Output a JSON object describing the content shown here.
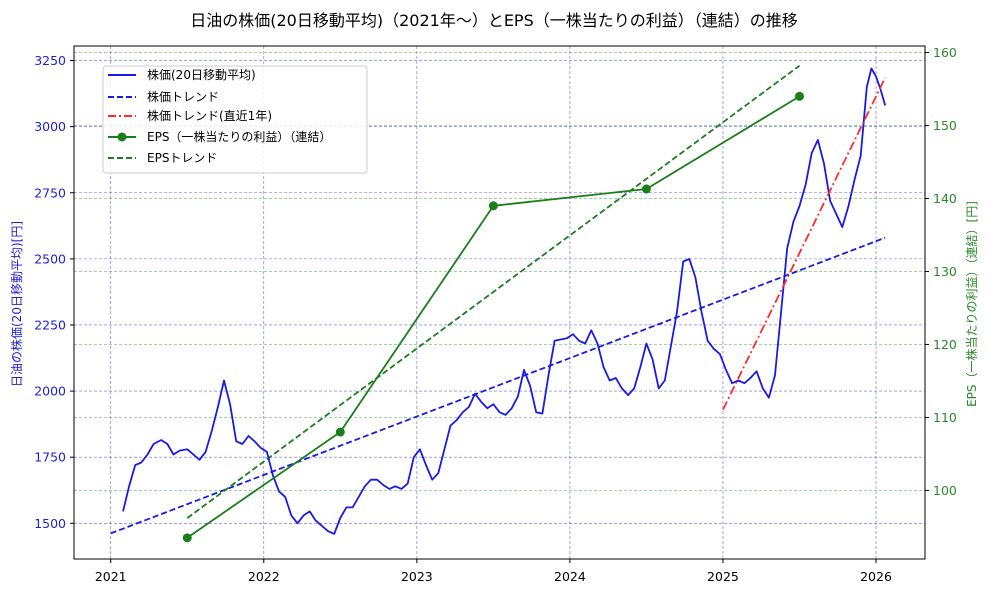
{
  "chart_data": {
    "type": "line",
    "title": "日油の株価(20日移動平均)（2021年～）とEPS（一株当たりの利益）（連結）の推移",
    "xlabel": "",
    "ylabel_left": "日油の株価(20日移動平均)[円]",
    "ylabel_right": "EPS（一株当たりの利益）（連結）[円]",
    "xlim": [
      2020.76,
      2026.32
    ],
    "ylim_left": [
      1365,
      3305
    ],
    "ylim_right": [
      90.6,
      160.9
    ],
    "x_ticks": [
      2021,
      2022,
      2023,
      2024,
      2025,
      2026
    ],
    "y_ticks_left": [
      1500,
      1750,
      2000,
      2250,
      2500,
      2750,
      3000,
      3250
    ],
    "y_ticks_right": [
      100,
      110,
      120,
      130,
      140,
      150,
      160
    ],
    "grid": true,
    "legend_position": "upper left",
    "colors": {
      "price": "#1a1ae6",
      "price_trend": "#1a1ae6",
      "recent_trend": "#ff2a2a",
      "eps": "#1a7f1a",
      "eps_trend": "#1a7f1a",
      "left_axis": "#1f1fd0",
      "right_axis": "#2a8a2a",
      "grid_left": "#4444cc",
      "grid_right": "#44aa44"
    },
    "series": [
      {
        "name": "株価(20日移動平均)",
        "axis": "left",
        "style": "solid",
        "points": [
          [
            2021.08,
            1545
          ],
          [
            2021.12,
            1640
          ],
          [
            2021.16,
            1720
          ],
          [
            2021.2,
            1730
          ],
          [
            2021.24,
            1760
          ],
          [
            2021.28,
            1800
          ],
          [
            2021.33,
            1815
          ],
          [
            2021.37,
            1800
          ],
          [
            2021.41,
            1760
          ],
          [
            2021.45,
            1775
          ],
          [
            2021.5,
            1780
          ],
          [
            2021.54,
            1760
          ],
          [
            2021.58,
            1740
          ],
          [
            2021.62,
            1770
          ],
          [
            2021.66,
            1850
          ],
          [
            2021.7,
            1940
          ],
          [
            2021.74,
            2040
          ],
          [
            2021.78,
            1950
          ],
          [
            2021.82,
            1810
          ],
          [
            2021.86,
            1800
          ],
          [
            2021.9,
            1830
          ],
          [
            2021.94,
            1810
          ],
          [
            2021.98,
            1785
          ],
          [
            2022.02,
            1770
          ],
          [
            2022.06,
            1680
          ],
          [
            2022.1,
            1620
          ],
          [
            2022.14,
            1600
          ],
          [
            2022.18,
            1530
          ],
          [
            2022.22,
            1500
          ],
          [
            2022.26,
            1530
          ],
          [
            2022.3,
            1545
          ],
          [
            2022.34,
            1510
          ],
          [
            2022.38,
            1490
          ],
          [
            2022.42,
            1470
          ],
          [
            2022.46,
            1460
          ],
          [
            2022.5,
            1520
          ],
          [
            2022.54,
            1560
          ],
          [
            2022.58,
            1560
          ],
          [
            2022.62,
            1600
          ],
          [
            2022.66,
            1640
          ],
          [
            2022.7,
            1665
          ],
          [
            2022.74,
            1665
          ],
          [
            2022.78,
            1645
          ],
          [
            2022.82,
            1630
          ],
          [
            2022.86,
            1640
          ],
          [
            2022.9,
            1630
          ],
          [
            2022.94,
            1650
          ],
          [
            2022.98,
            1750
          ],
          [
            2023.02,
            1780
          ],
          [
            2023.06,
            1720
          ],
          [
            2023.1,
            1665
          ],
          [
            2023.14,
            1690
          ],
          [
            2023.18,
            1780
          ],
          [
            2023.22,
            1870
          ],
          [
            2023.26,
            1890
          ],
          [
            2023.3,
            1920
          ],
          [
            2023.34,
            1940
          ],
          [
            2023.38,
            1990
          ],
          [
            2023.42,
            1960
          ],
          [
            2023.46,
            1935
          ],
          [
            2023.5,
            1950
          ],
          [
            2023.54,
            1920
          ],
          [
            2023.58,
            1910
          ],
          [
            2023.62,
            1935
          ],
          [
            2023.66,
            1980
          ],
          [
            2023.7,
            2080
          ],
          [
            2023.74,
            2020
          ],
          [
            2023.78,
            1920
          ],
          [
            2023.82,
            1915
          ],
          [
            2023.86,
            2060
          ],
          [
            2023.9,
            2190
          ],
          [
            2023.94,
            2195
          ],
          [
            2023.98,
            2200
          ],
          [
            2024.02,
            2215
          ],
          [
            2024.06,
            2190
          ],
          [
            2024.1,
            2180
          ],
          [
            2024.14,
            2230
          ],
          [
            2024.18,
            2180
          ],
          [
            2024.22,
            2090
          ],
          [
            2024.26,
            2040
          ],
          [
            2024.3,
            2050
          ],
          [
            2024.34,
            2010
          ],
          [
            2024.38,
            1985
          ],
          [
            2024.42,
            2010
          ],
          [
            2024.46,
            2090
          ],
          [
            2024.5,
            2180
          ],
          [
            2024.54,
            2120
          ],
          [
            2024.58,
            2010
          ],
          [
            2024.62,
            2040
          ],
          [
            2024.66,
            2170
          ],
          [
            2024.7,
            2300
          ],
          [
            2024.74,
            2490
          ],
          [
            2024.78,
            2500
          ],
          [
            2024.82,
            2430
          ],
          [
            2024.86,
            2300
          ],
          [
            2024.9,
            2190
          ],
          [
            2024.94,
            2160
          ],
          [
            2024.98,
            2140
          ],
          [
            2025.02,
            2080
          ],
          [
            2025.06,
            2030
          ],
          [
            2025.1,
            2040
          ],
          [
            2025.14,
            2030
          ],
          [
            2025.18,
            2050
          ],
          [
            2025.22,
            2075
          ],
          [
            2025.26,
            2010
          ],
          [
            2025.3,
            1975
          ],
          [
            2025.34,
            2060
          ],
          [
            2025.38,
            2300
          ],
          [
            2025.42,
            2540
          ],
          [
            2025.46,
            2640
          ],
          [
            2025.5,
            2700
          ],
          [
            2025.54,
            2780
          ],
          [
            2025.58,
            2900
          ],
          [
            2025.62,
            2950
          ],
          [
            2025.66,
            2860
          ],
          [
            2025.7,
            2720
          ],
          [
            2025.74,
            2670
          ],
          [
            2025.78,
            2620
          ],
          [
            2025.82,
            2700
          ],
          [
            2025.86,
            2800
          ],
          [
            2025.9,
            2890
          ],
          [
            2025.94,
            3150
          ],
          [
            2025.97,
            3220
          ],
          [
            2026.0,
            3190
          ],
          [
            2026.03,
            3140
          ],
          [
            2026.06,
            3080
          ]
        ]
      },
      {
        "name": "株価トレンド",
        "axis": "left",
        "style": "dashed",
        "points": [
          [
            2021.0,
            1462
          ],
          [
            2026.06,
            2580
          ]
        ]
      },
      {
        "name": "株価トレンド(直近1年)",
        "axis": "left",
        "style": "dashdot",
        "points": [
          [
            2025.0,
            1930
          ],
          [
            2026.06,
            3185
          ]
        ]
      },
      {
        "name": "EPS（一株当たりの利益）（連結）",
        "axis": "right",
        "style": "solid-marker",
        "points": [
          [
            2021.5,
            93.5
          ],
          [
            2022.5,
            108.0
          ],
          [
            2023.5,
            139.0
          ],
          [
            2024.5,
            141.3
          ],
          [
            2025.5,
            154.0
          ]
        ]
      },
      {
        "name": "EPSトレンド",
        "axis": "right",
        "style": "dashed",
        "points": [
          [
            2021.5,
            96.2
          ],
          [
            2025.5,
            158.2
          ]
        ]
      }
    ]
  },
  "legend": {
    "items": [
      {
        "label": "株価(20日移動平均)"
      },
      {
        "label": "株価トレンド"
      },
      {
        "label": "株価トレンド(直近1年)"
      },
      {
        "label": "EPS（一株当たりの利益）（連結）"
      },
      {
        "label": "EPSトレンド"
      }
    ]
  }
}
